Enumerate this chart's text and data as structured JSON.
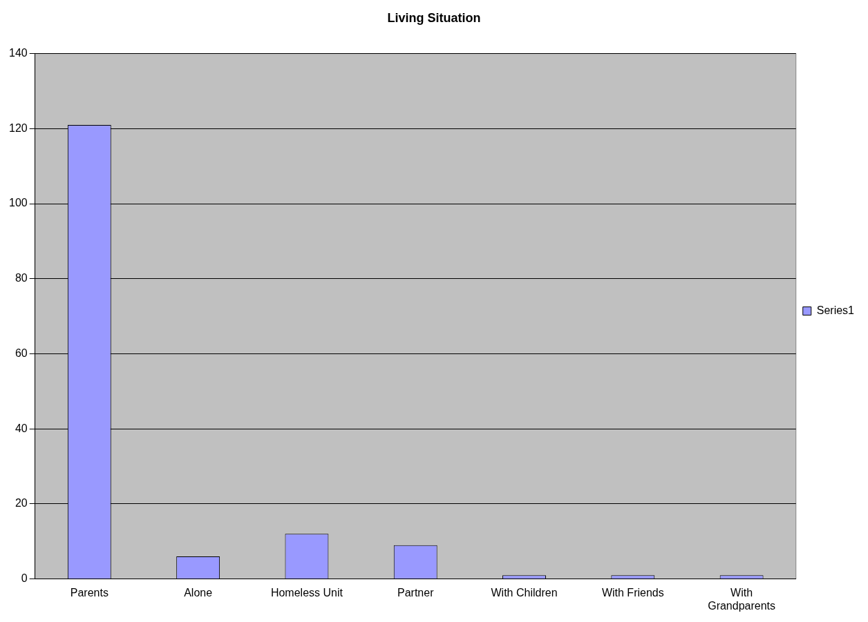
{
  "chart_data": {
    "type": "bar",
    "title": "Living Situation",
    "categories": [
      "Parents",
      "Alone",
      "Homeless Unit",
      "Partner",
      "With Children",
      "With Friends",
      "With Grandparents"
    ],
    "series": [
      {
        "name": "Series1",
        "color": "#9999ff",
        "values": [
          121,
          6,
          12,
          9,
          1,
          1,
          1
        ]
      }
    ],
    "ylim": [
      0,
      140
    ],
    "yticks": [
      0,
      20,
      40,
      60,
      80,
      100,
      120,
      140
    ],
    "grid": "y",
    "legend": "right"
  }
}
